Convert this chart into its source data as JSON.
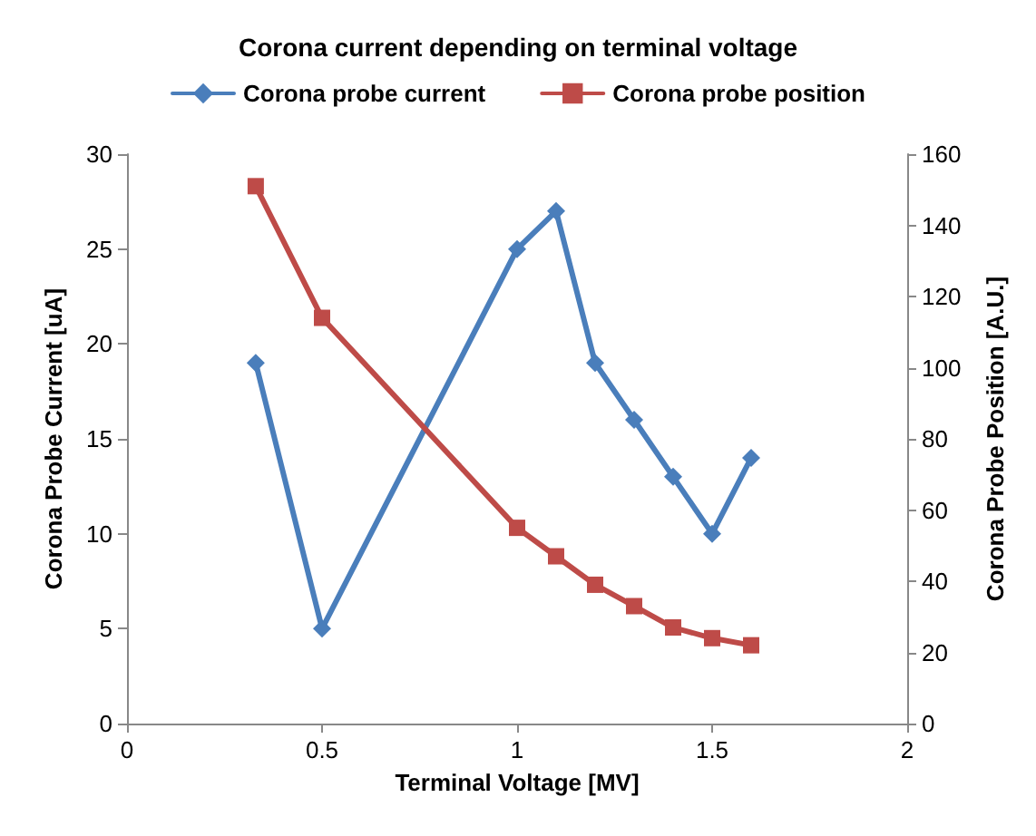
{
  "chart_data": {
    "type": "line",
    "title": "Corona current depending on terminal voltage",
    "xlabel": "Terminal Voltage [MV]",
    "ylabel": "Corona Probe Current [uA]",
    "y2label": "Corona Probe Position [A.U.]",
    "x": [
      0.33,
      0.5,
      1.0,
      1.1,
      1.2,
      1.3,
      1.4,
      1.5,
      1.6
    ],
    "series": [
      {
        "name": "Corona probe current",
        "color": "#4a7ebb",
        "marker": "diamond",
        "values": [
          19,
          5,
          25,
          27,
          19,
          16,
          13,
          10,
          14
        ]
      },
      {
        "name": "Corona probe position",
        "color": "#be4b48",
        "marker": "square",
        "axis": "y2",
        "values": [
          151,
          114,
          55,
          47,
          39,
          33,
          27,
          24,
          22
        ]
      }
    ],
    "xlim": [
      0,
      2
    ],
    "xticks": [
      0,
      0.5,
      1,
      1.5,
      2
    ],
    "ylim": [
      0,
      30
    ],
    "yticks": [
      0,
      5,
      10,
      15,
      20,
      25,
      30
    ],
    "y2lim": [
      0,
      160
    ],
    "y2ticks": [
      0,
      20,
      40,
      60,
      80,
      100,
      120,
      140,
      160
    ],
    "grid": false,
    "legend": "top",
    "line_style": "solid"
  }
}
